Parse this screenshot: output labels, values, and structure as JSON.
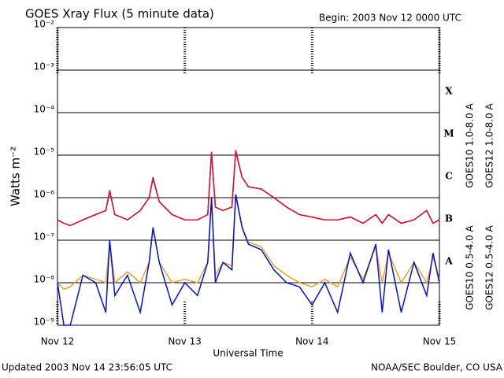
{
  "chart_data": {
    "type": "line",
    "title": "GOES Xray Flux (5 minute data)",
    "subtitle": "Begin:  2003 Nov 12 0000 UTC",
    "ylabel": "Watts m⁻²",
    "xlabel": "Universal Time",
    "footer_left": "Updated 2003 Nov 14 23:56:05 UTC",
    "footer_right": "NOAA/SEC Boulder, CO USA",
    "ylog": true,
    "grid": true,
    "ylim": [
      1e-09,
      0.01
    ],
    "yticks": [
      {
        "value": 1e-09,
        "label": "10⁻⁹"
      },
      {
        "value": 1e-08,
        "label": "10⁻⁸"
      },
      {
        "value": 1e-07,
        "label": "10⁻⁷"
      },
      {
        "value": 1e-06,
        "label": "10⁻⁶"
      },
      {
        "value": 1e-05,
        "label": "10⁻⁵"
      },
      {
        "value": 0.0001,
        "label": "10⁻⁴"
      },
      {
        "value": 0.001,
        "label": "10⁻³"
      },
      {
        "value": 0.01,
        "label": "10⁻²"
      }
    ],
    "xlim": [
      0,
      3
    ],
    "xticks": [
      {
        "value": 0,
        "label": "Nov 12"
      },
      {
        "value": 1,
        "label": "Nov 13"
      },
      {
        "value": 2,
        "label": "Nov 14"
      },
      {
        "value": 3,
        "label": "Nov 15"
      }
    ],
    "flare_classes": [
      {
        "label": "X",
        "value": 0.0001
      },
      {
        "label": "M",
        "value": 1e-05
      },
      {
        "label": "C",
        "value": 1e-06
      },
      {
        "label": "B",
        "value": 1e-07
      },
      {
        "label": "A",
        "value": 1e-08
      }
    ],
    "x": [
      0,
      0.05,
      0.1,
      0.2,
      0.3,
      0.38,
      0.41,
      0.45,
      0.55,
      0.65,
      0.72,
      0.75,
      0.8,
      0.9,
      1.0,
      1.1,
      1.18,
      1.21,
      1.24,
      1.3,
      1.37,
      1.4,
      1.45,
      1.5,
      1.6,
      1.7,
      1.8,
      1.9,
      2.0,
      2.1,
      2.2,
      2.3,
      2.4,
      2.5,
      2.55,
      2.6,
      2.7,
      2.8,
      2.9,
      2.95,
      3.0
    ],
    "series": [
      {
        "name": "GOES10 1.0-8.0 A",
        "color": "#8a2be2",
        "values": [
          3e-07,
          2.5e-07,
          2.2e-07,
          3e-07,
          4e-07,
          5e-07,
          1.4e-06,
          4e-07,
          3e-07,
          5e-07,
          1e-06,
          2.8e-06,
          8e-07,
          4e-07,
          3e-07,
          3e-07,
          4e-07,
          1.1e-05,
          6e-07,
          5e-07,
          6e-07,
          1.2e-05,
          3e-06,
          1.8e-06,
          1.6e-06,
          1e-06,
          6e-07,
          4e-07,
          3.5e-07,
          3e-07,
          3e-07,
          3.5e-07,
          2.5e-07,
          4e-07,
          2.5e-07,
          4e-07,
          2.5e-07,
          3e-07,
          5e-07,
          2.5e-07,
          3e-07
        ]
      },
      {
        "name": "GOES12 1.0-8.0 A",
        "color": "#e0101e",
        "values": [
          3e-07,
          2.5e-07,
          2.2e-07,
          3e-07,
          4e-07,
          5e-07,
          1.5e-06,
          4e-07,
          3e-07,
          5e-07,
          1e-06,
          3e-06,
          8e-07,
          4e-07,
          3e-07,
          3e-07,
          4e-07,
          1.2e-05,
          6e-07,
          5e-07,
          6e-07,
          1.3e-05,
          3e-06,
          1.8e-06,
          1.6e-06,
          1e-06,
          6e-07,
          4e-07,
          3.5e-07,
          3e-07,
          3e-07,
          3.5e-07,
          2.5e-07,
          4e-07,
          2.5e-07,
          4e-07,
          2.5e-07,
          3e-07,
          5e-07,
          2.5e-07,
          3e-07
        ]
      },
      {
        "name": "GOES10 0.5-4.0 A",
        "color": "#f0a020",
        "values": [
          1e-08,
          7e-09,
          8e-09,
          1.5e-08,
          1.2e-08,
          1e-08,
          9e-08,
          1e-08,
          1.8e-08,
          1e-08,
          3e-08,
          1.8e-07,
          3e-08,
          1e-08,
          1.2e-08,
          1e-08,
          3e-08,
          9e-07,
          1.5e-08,
          3e-08,
          2.5e-08,
          1.1e-06,
          2e-07,
          9e-08,
          7e-08,
          2.5e-08,
          1.5e-08,
          1e-08,
          8e-09,
          1.2e-08,
          8e-09,
          4e-08,
          1.2e-08,
          7e-08,
          1e-08,
          5e-08,
          1e-08,
          3e-08,
          1e-08,
          4e-08,
          1.2e-08
        ]
      },
      {
        "name": "GOES12 0.5-4.0 A",
        "color": "#0010e0",
        "values": [
          1e-08,
          1e-09,
          1e-09,
          1.5e-08,
          1e-08,
          2e-09,
          1e-07,
          5e-09,
          1.5e-08,
          2e-09,
          3e-08,
          2e-07,
          3e-08,
          3e-09,
          1e-08,
          5e-09,
          3e-08,
          1e-06,
          1e-08,
          3e-08,
          2e-08,
          1.2e-06,
          2e-07,
          8e-08,
          6e-08,
          2e-08,
          1e-08,
          8e-09,
          3e-09,
          1e-08,
          2e-09,
          5e-08,
          1e-08,
          8e-08,
          2e-09,
          6e-08,
          2e-09,
          3e-08,
          5e-09,
          5e-08,
          1e-08
        ]
      }
    ]
  }
}
